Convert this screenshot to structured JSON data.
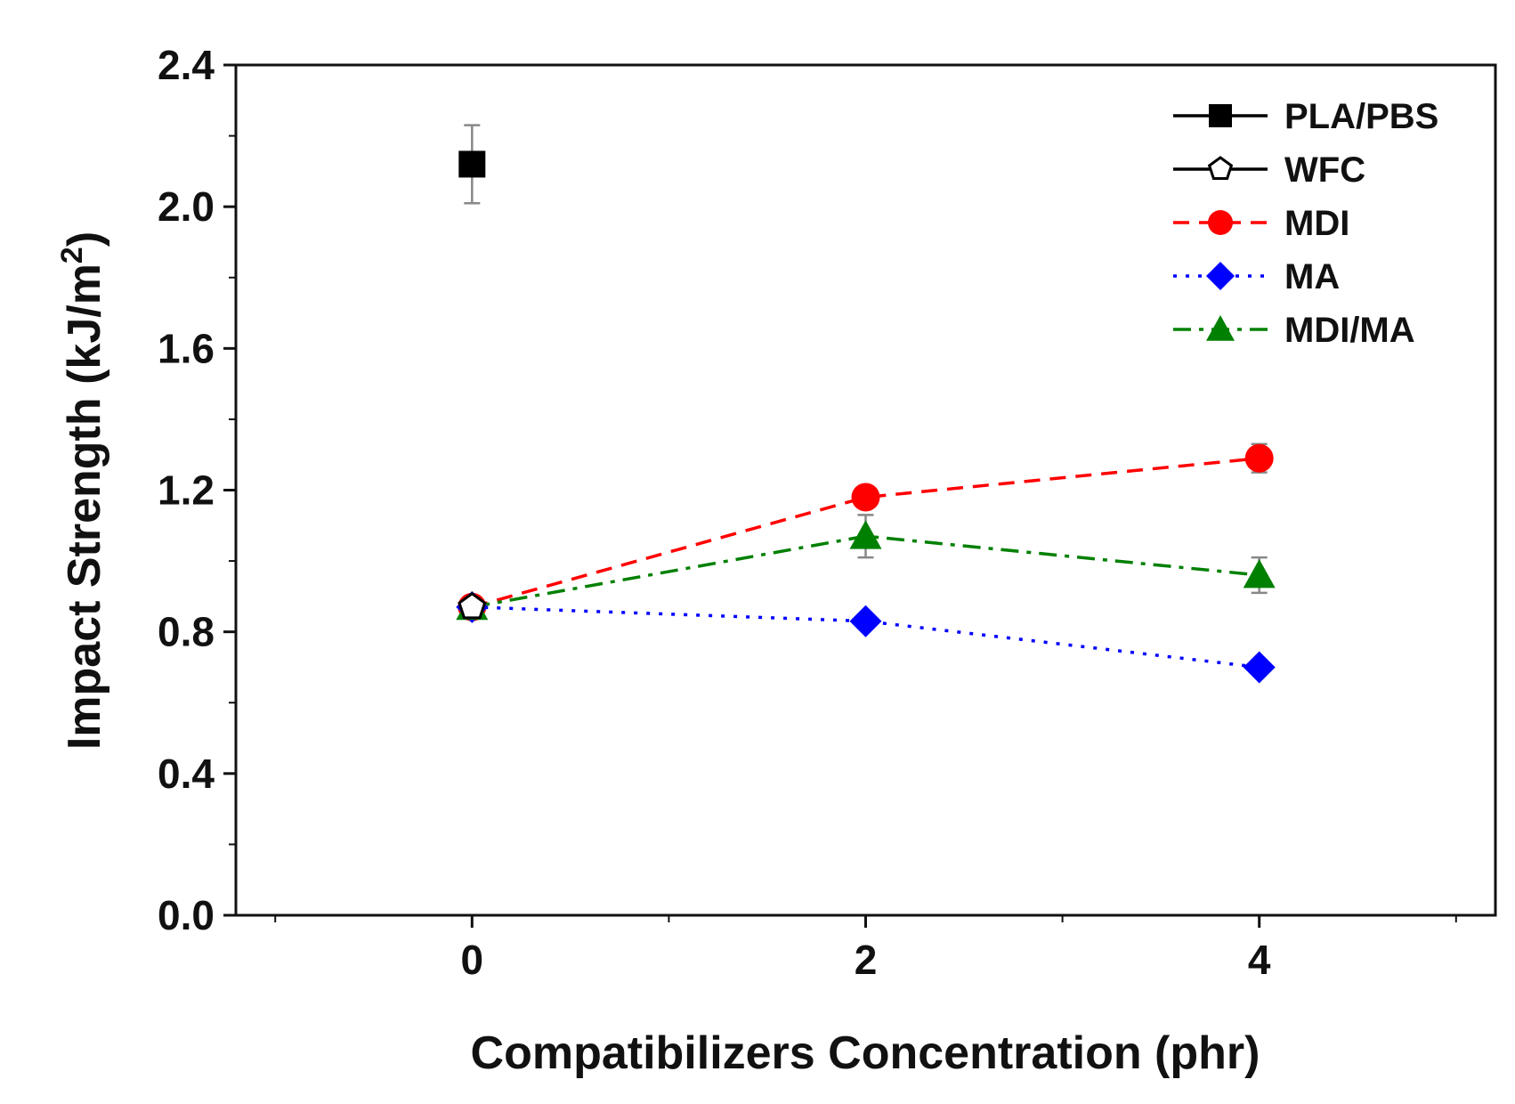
{
  "chart_data": {
    "type": "line",
    "title": "",
    "xlabel": "Compatibilizers Concentration (phr)",
    "ylabel_main": "Impact Strength (kJ/m",
    "ylabel_sup": "2",
    "ylabel_close": ")",
    "xlim": [
      -1.2,
      5.2
    ],
    "ylim": [
      0.0,
      2.4
    ],
    "x_ticks": [
      0,
      2,
      4
    ],
    "x_tick_labels": [
      "0",
      "2",
      "4"
    ],
    "y_ticks": [
      0.0,
      0.4,
      0.8,
      1.2,
      1.6,
      2.0,
      2.4
    ],
    "y_tick_labels": [
      "0.0",
      "0.4",
      "0.8",
      "1.2",
      "1.6",
      "2.0",
      "2.4"
    ],
    "grid": false,
    "legend_position": "top-right",
    "series": [
      {
        "name": "PLA/PBS",
        "color": "#000000",
        "marker": "square",
        "dash": "solid",
        "points": [
          {
            "x": 0,
            "y": 2.12,
            "err": 0.11
          }
        ]
      },
      {
        "name": "WFC",
        "color": "#000000",
        "marker": "pentagon-open",
        "dash": "solid",
        "points": [
          {
            "x": 0,
            "y": 0.87,
            "err": 0.02
          }
        ]
      },
      {
        "name": "MDI",
        "color": "#ff0000",
        "marker": "circle",
        "dash": "dashed",
        "points": [
          {
            "x": 0,
            "y": 0.87,
            "err": 0.02
          },
          {
            "x": 2,
            "y": 1.18,
            "err": 0.03
          },
          {
            "x": 4,
            "y": 1.29,
            "err": 0.04
          }
        ]
      },
      {
        "name": "MA",
        "color": "#0000ff",
        "marker": "diamond",
        "dash": "dotted",
        "points": [
          {
            "x": 0,
            "y": 0.87,
            "err": 0.02
          },
          {
            "x": 2,
            "y": 0.83,
            "err": 0.02
          },
          {
            "x": 4,
            "y": 0.7,
            "err": 0.02
          }
        ]
      },
      {
        "name": "MDI/MA",
        "color": "#008000",
        "marker": "triangle",
        "dash": "dashdot",
        "points": [
          {
            "x": 0,
            "y": 0.87,
            "err": 0.02
          },
          {
            "x": 2,
            "y": 1.07,
            "err": 0.06
          },
          {
            "x": 4,
            "y": 0.96,
            "err": 0.05
          }
        ]
      }
    ]
  }
}
